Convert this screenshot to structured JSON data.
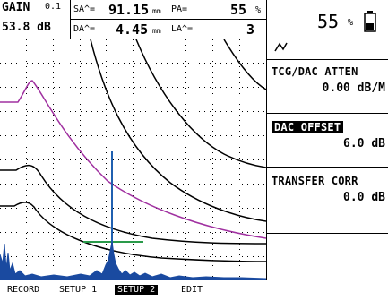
{
  "header": {
    "gain_label": "GAIN",
    "gain_step": "0.1",
    "gain_value": "53.8 dB",
    "sa_label": "SA^=",
    "sa_value": "91.15",
    "sa_unit": "mm",
    "pa_label": "PA=",
    "pa_value": "55",
    "pa_unit": "%",
    "da_label": "DA^=",
    "da_value": "4.45",
    "da_unit": "mm",
    "la_label": "LA^=",
    "la_value": "3"
  },
  "right_panel": {
    "percent_value": "55",
    "percent_unit": "%",
    "params": [
      {
        "label": "TCG/DAC ATTEN",
        "value": "0.00 dB/M",
        "selected": false
      },
      {
        "label": "DAC OFFSET",
        "value": "6.0 dB",
        "selected": true
      },
      {
        "label": "TRANSFER CORR",
        "value": "0.0 dB",
        "selected": false
      }
    ]
  },
  "footer": {
    "tabs": [
      {
        "label": "RECORD",
        "active": false
      },
      {
        "label": "SETUP 1",
        "active": false
      },
      {
        "label": "SETUP 2",
        "active": true
      },
      {
        "label": "EDIT",
        "active": false
      }
    ]
  },
  "colors": {
    "dac_curve": "#000000",
    "reference_curve": "#a030a0",
    "gate": "#2a9a4a",
    "cursor": "#2060b0",
    "signal": "#1a4aa0"
  },
  "icons": {
    "battery": "battery-icon",
    "rectification": "rectification-icon"
  }
}
